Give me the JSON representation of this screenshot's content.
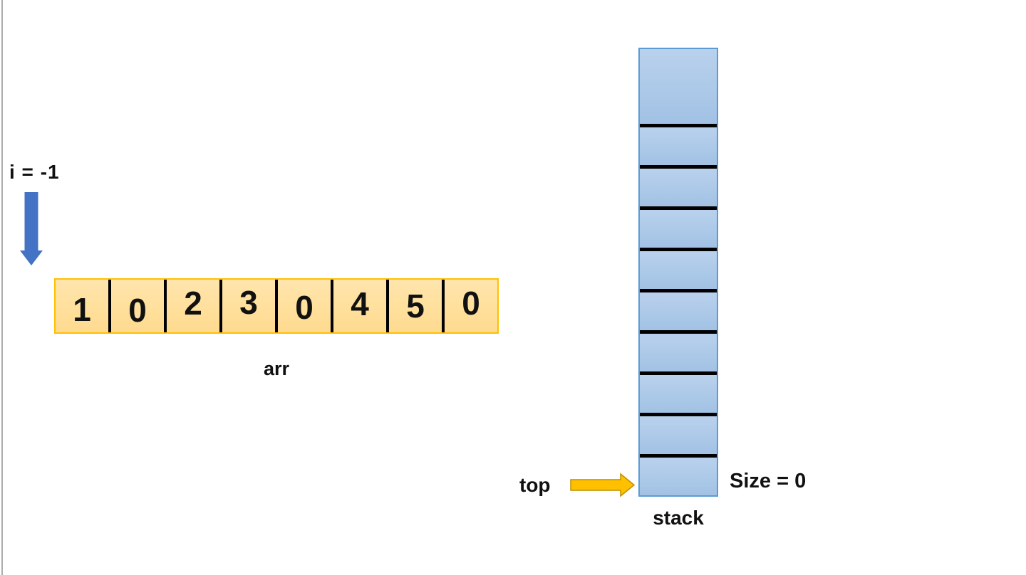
{
  "diagram": {
    "array_section": {
      "index_label": "i = -1",
      "cells": [
        "1",
        "0",
        "2",
        "3",
        "0",
        "4",
        "5",
        "0"
      ],
      "caption": "arr"
    },
    "stack_section": {
      "pointer_label": "top",
      "size_label": "Size = 0",
      "caption": "stack",
      "cell_count": 10
    },
    "colors": {
      "text": "#111111",
      "divider": "#000000",
      "array_fill": "#FFDF9A",
      "array_border": "#FFC000",
      "stack_fill": "#ACC9E8",
      "stack_border": "#5B9BD5",
      "down_arrow": "#4472C4",
      "right_arrow_fill": "#FFC000",
      "right_arrow_border": "#BF9000"
    }
  }
}
